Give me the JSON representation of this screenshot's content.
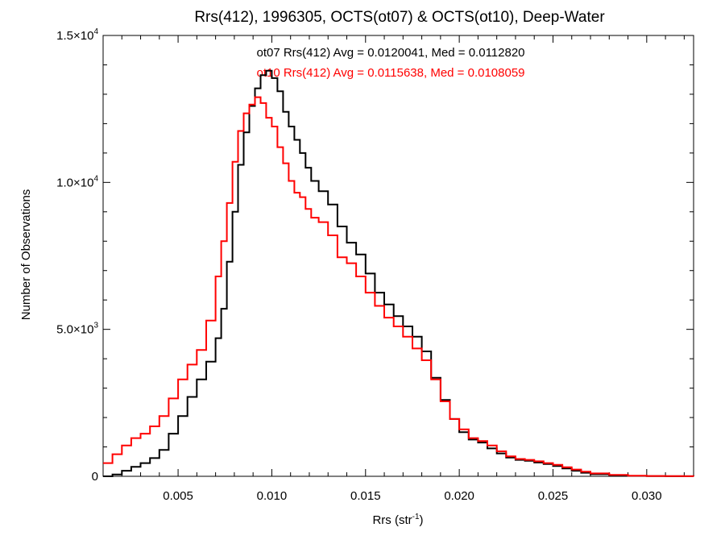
{
  "chart_data": {
    "type": "line",
    "title": "Rrs(412), 1996305, OCTS(ot07) & OCTS(ot10), Deep-Water",
    "xlabel": {
      "base": "Rrs (str",
      "sup": "-1",
      "tail": ")"
    },
    "ylabel": "Number of Observations",
    "xlim": [
      0.001,
      0.0325
    ],
    "ylim": [
      0,
      15000
    ],
    "xticks": [
      {
        "value": 0.005,
        "label": "0.005"
      },
      {
        "value": 0.01,
        "label": "0.010"
      },
      {
        "value": 0.015,
        "label": "0.015"
      },
      {
        "value": 0.02,
        "label": "0.020"
      },
      {
        "value": 0.025,
        "label": "0.025"
      },
      {
        "value": 0.03,
        "label": "0.030"
      }
    ],
    "yticks": [
      {
        "value": 0,
        "base": "0",
        "exp": ""
      },
      {
        "value": 5000,
        "base": "5.0×10",
        "exp": "3"
      },
      {
        "value": 10000,
        "base": "1.0×10",
        "exp": "4"
      },
      {
        "value": 15000,
        "base": "1.5×10",
        "exp": "4"
      }
    ],
    "grid": false,
    "annotations": [
      {
        "text": "ot07 Rrs(412) Avg = 0.0120041, Med = 0.0112820",
        "color": "#000000"
      },
      {
        "text": "ot10 Rrs(412) Avg = 0.0115638, Med = 0.0108059",
        "color": "#ff0000"
      }
    ],
    "series": [
      {
        "color": "#000000",
        "points": [
          [
            0.001,
            0
          ],
          [
            0.0015,
            60
          ],
          [
            0.002,
            190
          ],
          [
            0.0025,
            320
          ],
          [
            0.003,
            450
          ],
          [
            0.0035,
            620
          ],
          [
            0.004,
            900
          ],
          [
            0.0045,
            1450
          ],
          [
            0.005,
            2050
          ],
          [
            0.0055,
            2700
          ],
          [
            0.006,
            3300
          ],
          [
            0.0065,
            3900
          ],
          [
            0.007,
            4700
          ],
          [
            0.0073,
            5700
          ],
          [
            0.0076,
            7300
          ],
          [
            0.0079,
            9000
          ],
          [
            0.0082,
            10600
          ],
          [
            0.0085,
            11700
          ],
          [
            0.0088,
            12600
          ],
          [
            0.0091,
            13200
          ],
          [
            0.0094,
            13650
          ],
          [
            0.0097,
            13800
          ],
          [
            0.01,
            13550
          ],
          [
            0.0103,
            13100
          ],
          [
            0.0106,
            12400
          ],
          [
            0.0109,
            11900
          ],
          [
            0.0112,
            11450
          ],
          [
            0.0115,
            11000
          ],
          [
            0.0118,
            10500
          ],
          [
            0.0121,
            10050
          ],
          [
            0.0125,
            9700
          ],
          [
            0.013,
            9250
          ],
          [
            0.0135,
            8500
          ],
          [
            0.014,
            7950
          ],
          [
            0.0145,
            7550
          ],
          [
            0.015,
            6900
          ],
          [
            0.0155,
            6250
          ],
          [
            0.016,
            5850
          ],
          [
            0.0165,
            5450
          ],
          [
            0.017,
            5100
          ],
          [
            0.0175,
            4750
          ],
          [
            0.018,
            4250
          ],
          [
            0.0185,
            3350
          ],
          [
            0.019,
            2600
          ],
          [
            0.0195,
            1950
          ],
          [
            0.02,
            1500
          ],
          [
            0.0205,
            1250
          ],
          [
            0.021,
            1150
          ],
          [
            0.0215,
            950
          ],
          [
            0.022,
            780
          ],
          [
            0.0225,
            640
          ],
          [
            0.023,
            560
          ],
          [
            0.0235,
            530
          ],
          [
            0.024,
            470
          ],
          [
            0.0245,
            420
          ],
          [
            0.025,
            350
          ],
          [
            0.0255,
            270
          ],
          [
            0.026,
            190
          ],
          [
            0.0265,
            120
          ],
          [
            0.027,
            70
          ],
          [
            0.028,
            35
          ],
          [
            0.029,
            15
          ],
          [
            0.03,
            8
          ],
          [
            0.031,
            4
          ],
          [
            0.032,
            2
          ],
          [
            0.0325,
            0
          ]
        ]
      },
      {
        "color": "#ff0000",
        "points": [
          [
            0.001,
            450
          ],
          [
            0.0015,
            750
          ],
          [
            0.002,
            1050
          ],
          [
            0.0025,
            1300
          ],
          [
            0.003,
            1450
          ],
          [
            0.0035,
            1700
          ],
          [
            0.004,
            2050
          ],
          [
            0.0045,
            2650
          ],
          [
            0.005,
            3300
          ],
          [
            0.0055,
            3800
          ],
          [
            0.006,
            4300
          ],
          [
            0.0065,
            5300
          ],
          [
            0.007,
            6800
          ],
          [
            0.0073,
            8000
          ],
          [
            0.0076,
            9300
          ],
          [
            0.0079,
            10700
          ],
          [
            0.0082,
            11750
          ],
          [
            0.0085,
            12350
          ],
          [
            0.0088,
            12650
          ],
          [
            0.0091,
            12900
          ],
          [
            0.0094,
            12700
          ],
          [
            0.0097,
            12200
          ],
          [
            0.01,
            11900
          ],
          [
            0.0103,
            11200
          ],
          [
            0.0106,
            10650
          ],
          [
            0.0109,
            10050
          ],
          [
            0.0112,
            9650
          ],
          [
            0.0115,
            9500
          ],
          [
            0.0118,
            9100
          ],
          [
            0.0121,
            8800
          ],
          [
            0.0125,
            8650
          ],
          [
            0.013,
            8200
          ],
          [
            0.0135,
            7450
          ],
          [
            0.014,
            7250
          ],
          [
            0.0145,
            6800
          ],
          [
            0.015,
            6250
          ],
          [
            0.0155,
            5800
          ],
          [
            0.016,
            5400
          ],
          [
            0.0165,
            5100
          ],
          [
            0.017,
            4750
          ],
          [
            0.0175,
            4350
          ],
          [
            0.018,
            3950
          ],
          [
            0.0185,
            3300
          ],
          [
            0.019,
            2550
          ],
          [
            0.0195,
            1950
          ],
          [
            0.02,
            1600
          ],
          [
            0.0205,
            1300
          ],
          [
            0.021,
            1200
          ],
          [
            0.0215,
            1050
          ],
          [
            0.022,
            850
          ],
          [
            0.0225,
            680
          ],
          [
            0.023,
            590
          ],
          [
            0.0235,
            560
          ],
          [
            0.024,
            510
          ],
          [
            0.0245,
            450
          ],
          [
            0.025,
            390
          ],
          [
            0.0255,
            310
          ],
          [
            0.026,
            230
          ],
          [
            0.0265,
            160
          ],
          [
            0.027,
            100
          ],
          [
            0.028,
            50
          ],
          [
            0.029,
            20
          ],
          [
            0.03,
            10
          ],
          [
            0.031,
            5
          ],
          [
            0.032,
            2
          ],
          [
            0.0325,
            0
          ]
        ]
      }
    ]
  }
}
